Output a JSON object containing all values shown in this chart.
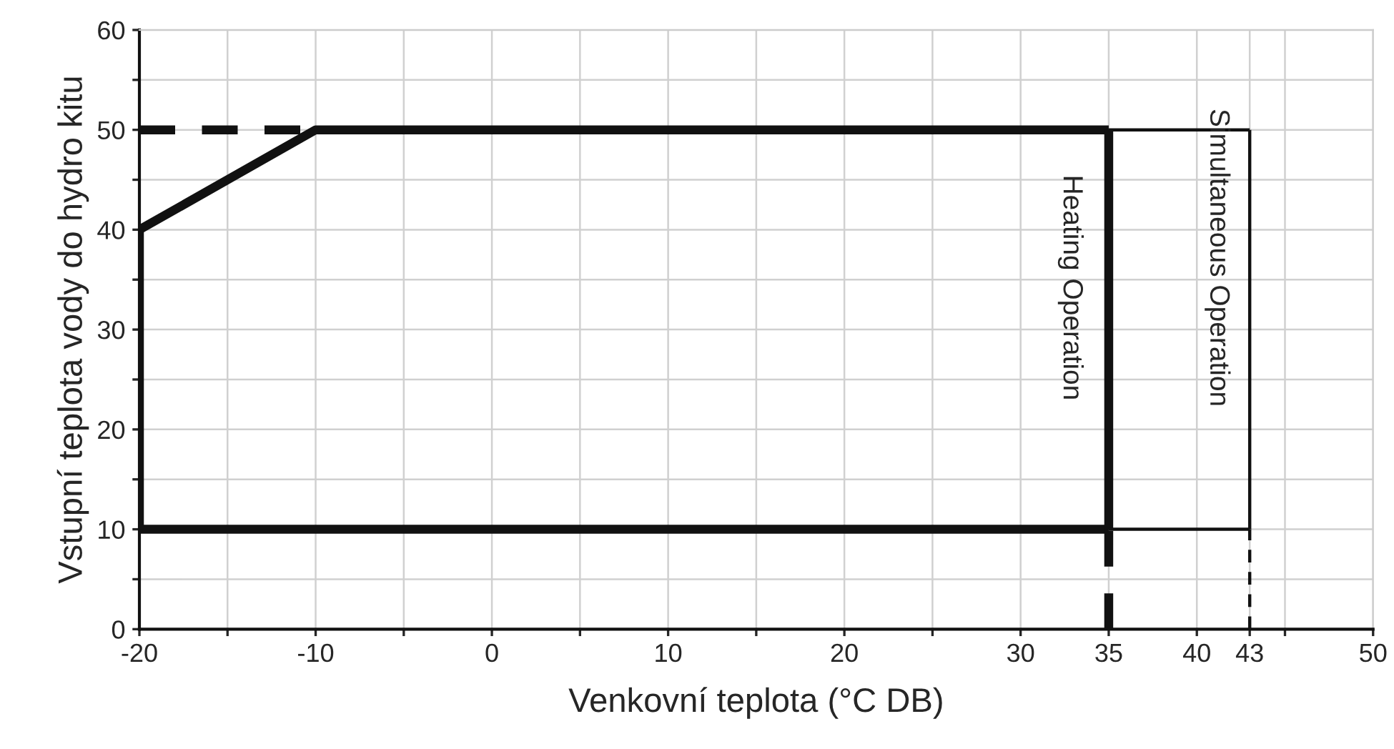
{
  "chart_data": {
    "type": "line",
    "xlabel": "Venkovní teplota (°C DB)",
    "ylabel": "Vstupní teplota vody do hydro kitu",
    "series": [
      {
        "color": "#111111",
        "line_style": "solid",
        "x": [
          -20,
          -10,
          35
        ],
        "values": [
          40,
          50,
          50
        ]
      },
      {
        "color": "#111111",
        "line_style": "solid",
        "x": [
          -20,
          35
        ],
        "values": [
          10,
          10
        ]
      },
      {
        "color": "#111111",
        "line_style": "solid",
        "x": [
          -20,
          -20
        ],
        "values": [
          10,
          40
        ]
      },
      {
        "color": "#111111",
        "line_style": "solid",
        "x": [
          35,
          35
        ],
        "values": [
          10,
          50
        ]
      },
      {
        "color": "#111111",
        "line_style": "solid",
        "x": [
          35,
          43
        ],
        "values": [
          50,
          50
        ]
      },
      {
        "color": "#111111",
        "line_style": "solid",
        "x": [
          35,
          43
        ],
        "values": [
          10,
          10
        ]
      },
      {
        "color": "#111111",
        "line_style": "solid",
        "x": [
          43,
          43
        ],
        "values": [
          10,
          50
        ]
      },
      {
        "color": "#111111",
        "line_style": "dashed",
        "x": [
          -20,
          -10
        ],
        "values": [
          50,
          50
        ]
      },
      {
        "color": "#111111",
        "line_style": "dashed",
        "x": [
          35,
          35
        ],
        "values": [
          0,
          10
        ]
      },
      {
        "color": "#111111",
        "line_style": "dashed",
        "x": [
          43,
          43
        ],
        "values": [
          0,
          10
        ]
      }
    ],
    "annotations": [
      "Heating Operation",
      "Simultaneous Operation"
    ],
    "xlim": [
      -20,
      50
    ],
    "ylim": [
      0,
      60
    ],
    "xticks": [
      -20,
      {
        "value": -15,
        "label": null
      },
      -10,
      {
        "value": -5,
        "label": null
      },
      0,
      {
        "value": 5,
        "label": null
      },
      10,
      {
        "value": 15,
        "label": null
      },
      20,
      {
        "value": 25,
        "label": null
      },
      30,
      35,
      40,
      43,
      {
        "value": 45,
        "label": null
      },
      50
    ],
    "yticks": [
      0,
      {
        "value": 5,
        "label": null
      },
      10,
      {
        "value": 15,
        "label": null
      },
      20,
      {
        "value": 25,
        "label": null
      },
      30,
      {
        "value": 35,
        "label": null
      },
      40,
      {
        "value": 45,
        "label": null
      },
      50,
      {
        "value": 55,
        "label": null
      },
      60
    ],
    "grid": true,
    "marker": "none"
  }
}
